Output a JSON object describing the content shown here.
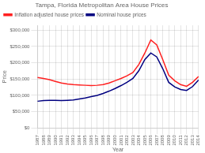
{
  "chart_data": {
    "type": "line",
    "title": "Tampa, Florida Metropolitan Area House Prices",
    "xlabel": "Year",
    "ylabel": "Price",
    "categories": [
      "1987",
      "1988",
      "1989",
      "1990",
      "1991",
      "1992",
      "1993",
      "1994",
      "1995",
      "1996",
      "1997",
      "1998",
      "1999",
      "2000",
      "2001",
      "2002",
      "2003",
      "2004",
      "2005",
      "2006",
      "2007",
      "2008",
      "2009",
      "2010",
      "2011",
      "2012",
      "2013",
      "2014"
    ],
    "series": [
      {
        "name": "Inflation adjusted house prices",
        "color": "#ff2020",
        "values": [
          155000,
          152000,
          148000,
          143000,
          138000,
          135000,
          133000,
          132000,
          131000,
          130000,
          131000,
          133000,
          138000,
          145000,
          152000,
          160000,
          170000,
          195000,
          230000,
          270000,
          255000,
          210000,
          162000,
          145000,
          133000,
          128000,
          140000,
          158000
        ]
      },
      {
        "name": "Nominal house prices",
        "color": "#000080",
        "values": [
          82000,
          84000,
          85000,
          85000,
          84000,
          85000,
          86000,
          89000,
          92000,
          96000,
          100000,
          106000,
          113000,
          121000,
          130000,
          140000,
          152000,
          176000,
          210000,
          230000,
          218000,
          182000,
          140000,
          126000,
          118000,
          115000,
          127000,
          147000
        ]
      }
    ],
    "ylim": [
      0,
      315000
    ],
    "yticks": [
      {
        "value": 0,
        "label": "$0"
      },
      {
        "value": 50000,
        "label": "$50,000"
      },
      {
        "value": 100000,
        "label": "$100,000"
      },
      {
        "value": 150000,
        "label": "$150,000"
      },
      {
        "value": 200000,
        "label": "$200,000"
      },
      {
        "value": 250000,
        "label": "$250,000"
      },
      {
        "value": 300000,
        "label": "$300,000"
      }
    ],
    "grid": true,
    "legend": "upper left"
  }
}
